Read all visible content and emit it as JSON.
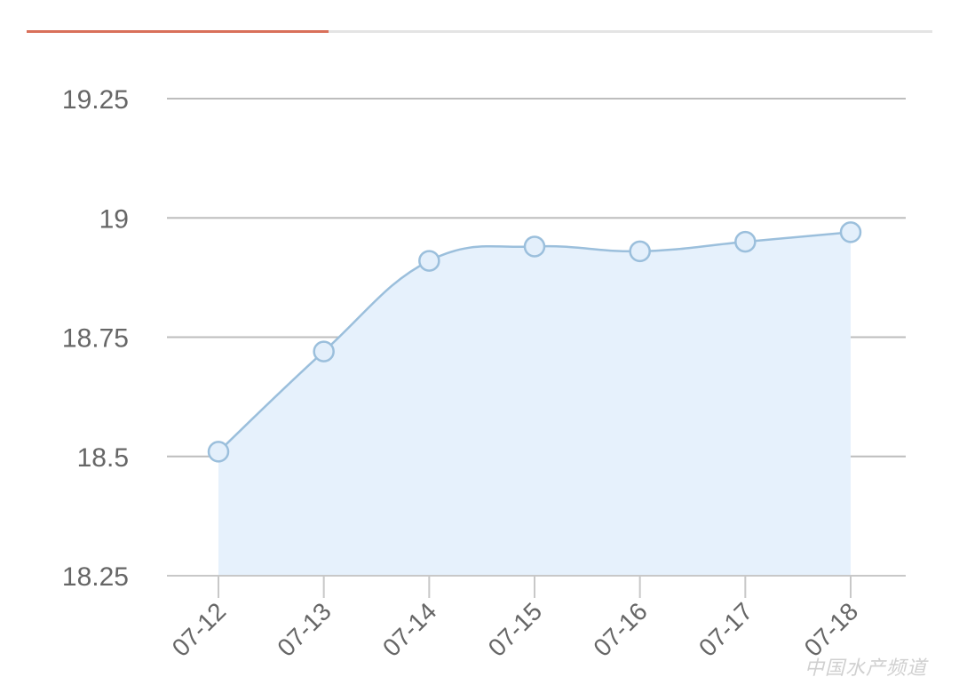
{
  "tabs": {
    "active_color": "#d9705a"
  },
  "watermark": {
    "text": "中国水产频道"
  },
  "chart_data": {
    "type": "area",
    "title": "",
    "xlabel": "",
    "ylabel": "",
    "categories": [
      "07-12",
      "07-13",
      "07-14",
      "07-15",
      "07-16",
      "07-17",
      "07-18"
    ],
    "values": [
      18.51,
      18.72,
      18.91,
      18.94,
      18.93,
      18.95,
      18.97
    ],
    "ylim": [
      18.25,
      19.25
    ],
    "yticks": [
      "18.25",
      "18.5",
      "18.75",
      "19",
      "19.25"
    ],
    "grid": true,
    "smooth": true,
    "colors": {
      "line": "#9bbfdc",
      "fill": "#e6f1fc",
      "marker_fill": "#e3effb",
      "grid": "#bdbdbd",
      "text": "#666666"
    }
  }
}
